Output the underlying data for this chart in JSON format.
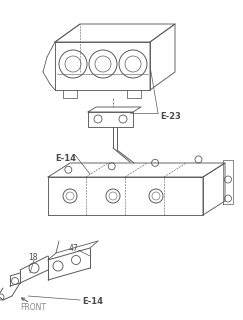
{
  "background_color": "#ffffff",
  "line_color": "#5a5a5a",
  "text_color": "#4a4a4a",
  "labels": {
    "E23": "E-23",
    "E14_top": "E-14",
    "E14_bot": "E-14",
    "num47": "47",
    "num18": "18",
    "front": "FRONT"
  },
  "figsize": [
    2.43,
    3.2
  ],
  "dpi": 100,
  "lw": 0.65
}
